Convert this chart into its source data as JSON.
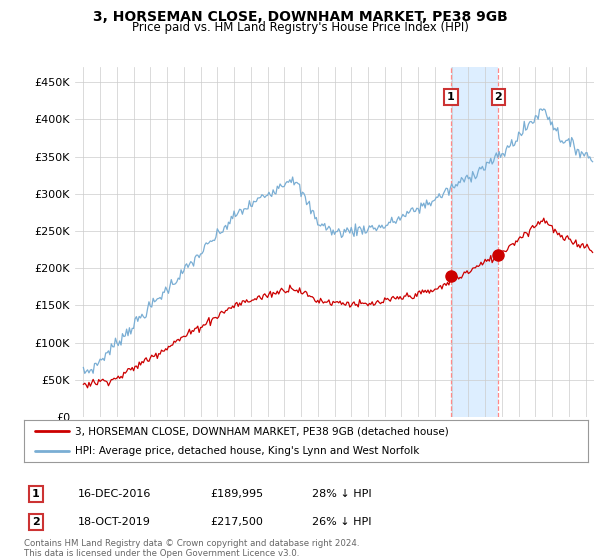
{
  "title": "3, HORSEMAN CLOSE, DOWNHAM MARKET, PE38 9GB",
  "subtitle": "Price paid vs. HM Land Registry's House Price Index (HPI)",
  "ylabel_ticks": [
    "£0",
    "£50K",
    "£100K",
    "£150K",
    "£200K",
    "£250K",
    "£300K",
    "£350K",
    "£400K",
    "£450K"
  ],
  "ytick_values": [
    0,
    50000,
    100000,
    150000,
    200000,
    250000,
    300000,
    350000,
    400000,
    450000
  ],
  "ylim": [
    0,
    470000
  ],
  "xlim_start": 1994.5,
  "xlim_end": 2025.5,
  "red_color": "#cc0000",
  "blue_color": "#7aaed4",
  "highlight_color": "#ddeeff",
  "sale1_x": 2016.96,
  "sale1_y": 189995,
  "sale2_x": 2019.79,
  "sale2_y": 217500,
  "sale1_label": "1",
  "sale2_label": "2",
  "legend_line1": "3, HORSEMAN CLOSE, DOWNHAM MARKET, PE38 9GB (detached house)",
  "legend_line2": "HPI: Average price, detached house, King's Lynn and West Norfolk",
  "table_row1": [
    "1",
    "16-DEC-2016",
    "£189,995",
    "28% ↓ HPI"
  ],
  "table_row2": [
    "2",
    "18-OCT-2019",
    "£217,500",
    "26% ↓ HPI"
  ],
  "footer": "Contains HM Land Registry data © Crown copyright and database right 2024.\nThis data is licensed under the Open Government Licence v3.0.",
  "background_color": "#ffffff",
  "grid_color": "#cccccc"
}
